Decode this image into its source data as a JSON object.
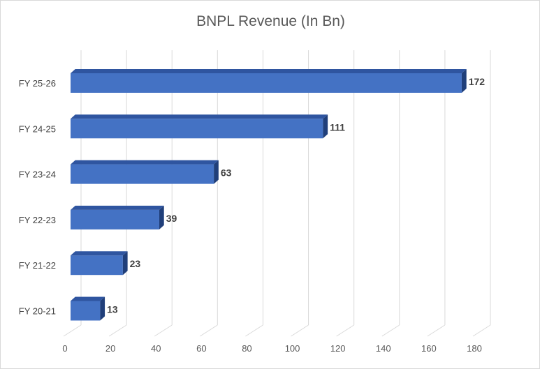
{
  "chart_data": {
    "type": "bar",
    "orientation": "horizontal",
    "style": "3d",
    "title": "BNPL Revenue (In Bn)",
    "categories": [
      "FY 20-21",
      "FY 21-22",
      "FY 22-23",
      "FY 23-24",
      "FY 24-25",
      "FY 25-26"
    ],
    "values": [
      13,
      23,
      39,
      63,
      111,
      172
    ],
    "data_labels": [
      "13",
      "23",
      "39",
      "63",
      "111",
      "172"
    ],
    "x_ticks": [
      "0",
      "20",
      "40",
      "60",
      "80",
      "100",
      "120",
      "140",
      "160",
      "180"
    ],
    "xlim": [
      0,
      180
    ],
    "grid": true,
    "legend": "none",
    "colors": {
      "bar_front": "#4472c4",
      "bar_top": "#2f55a0",
      "bar_side": "#203f7a",
      "grid": "#d9d9d9"
    }
  }
}
